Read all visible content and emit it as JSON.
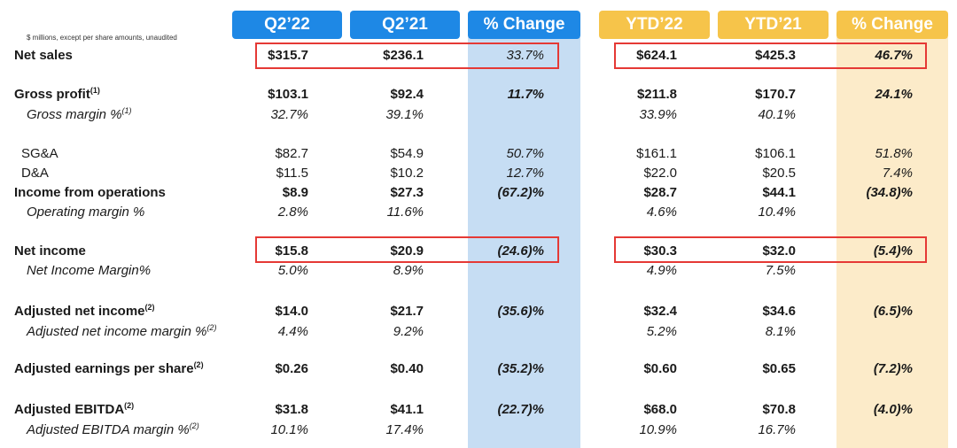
{
  "headers": {
    "q2_22": "Q2’22",
    "q2_21": "Q2’21",
    "q_change": "% Change",
    "ytd_22": "YTD’22",
    "ytd_21": "YTD’21",
    "ytd_change": "% Change"
  },
  "note": "$ millions, except per share amounts, unaudited",
  "rows": {
    "net_sales": {
      "label": "Net sales",
      "q2_22": "$315.7",
      "q2_21": "$236.1",
      "q_change": "33.7%",
      "ytd_22": "$624.1",
      "ytd_21": "$425.3",
      "ytd_change": "46.7%"
    },
    "gross_profit": {
      "label": "Gross profit",
      "sup": "(1)",
      "q2_22": "$103.1",
      "q2_21": "$92.4",
      "q_change": "11.7%",
      "ytd_22": "$211.8",
      "ytd_21": "$170.7",
      "ytd_change": "24.1%"
    },
    "gross_margin": {
      "label": "Gross margin %",
      "sup": "(1)",
      "q2_22": "32.7%",
      "q2_21": "39.1%",
      "ytd_22": "33.9%",
      "ytd_21": "40.1%"
    },
    "sga": {
      "label": "SG&A",
      "q2_22": "$82.7",
      "q2_21": "$54.9",
      "q_change": "50.7%",
      "ytd_22": "$161.1",
      "ytd_21": "$106.1",
      "ytd_change": "51.8%"
    },
    "da": {
      "label": "D&A",
      "q2_22": "$11.5",
      "q2_21": "$10.2",
      "q_change": "12.7%",
      "ytd_22": "$22.0",
      "ytd_21": "$20.5",
      "ytd_change": "7.4%"
    },
    "income_ops": {
      "label": "Income from operations",
      "q2_22": "$8.9",
      "q2_21": "$27.3",
      "q_change": "(67.2)%",
      "ytd_22": "$28.7",
      "ytd_21": "$44.1",
      "ytd_change": "(34.8)%"
    },
    "op_margin": {
      "label": "Operating margin %",
      "q2_22": "2.8%",
      "q2_21": "11.6%",
      "ytd_22": "4.6%",
      "ytd_21": "10.4%"
    },
    "net_income": {
      "label": "Net income",
      "q2_22": "$15.8",
      "q2_21": "$20.9",
      "q_change": "(24.6)%",
      "ytd_22": "$30.3",
      "ytd_21": "$32.0",
      "ytd_change": "(5.4)%"
    },
    "net_income_margin": {
      "label": "Net Income Margin%",
      "q2_22": "5.0%",
      "q2_21": "8.9%",
      "ytd_22": "4.9%",
      "ytd_21": "7.5%"
    },
    "adj_net_income": {
      "label": "Adjusted net income",
      "sup": "(2)",
      "q2_22": "$14.0",
      "q2_21": "$21.7",
      "q_change": "(35.6)%",
      "ytd_22": "$32.4",
      "ytd_21": "$34.6",
      "ytd_change": "(6.5)%"
    },
    "adj_net_income_margin": {
      "label": "Adjusted net income margin %",
      "sup": "(2)",
      "q2_22": "4.4%",
      "q2_21": "9.2%",
      "ytd_22": "5.2%",
      "ytd_21": "8.1%"
    },
    "adj_eps": {
      "label": "Adjusted earnings per share",
      "sup": "(2)",
      "q2_22": "$0.26",
      "q2_21": "$0.40",
      "q_change": "(35.2)%",
      "ytd_22": "$0.60",
      "ytd_21": "$0.65",
      "ytd_change": "(7.2)%"
    },
    "adj_ebitda": {
      "label": "Adjusted EBITDA",
      "sup": "(2)",
      "q2_22": "$31.8",
      "q2_21": "$41.1",
      "q_change": "(22.7)%",
      "ytd_22": "$68.0",
      "ytd_21": "$70.8",
      "ytd_change": "(4.0)%"
    },
    "adj_ebitda_margin": {
      "label": "Adjusted EBITDA margin %",
      "sup": "(2)",
      "q2_22": "10.1%",
      "q2_21": "17.4%",
      "ytd_22": "10.9%",
      "ytd_21": "16.7%"
    }
  },
  "colors": {
    "quarter_header": "#1e88e5",
    "ytd_header": "#f6c44a",
    "quarter_change_bg": "#c6ddf3",
    "ytd_change_bg": "#fcebc9",
    "highlight_box": "#e53935"
  }
}
